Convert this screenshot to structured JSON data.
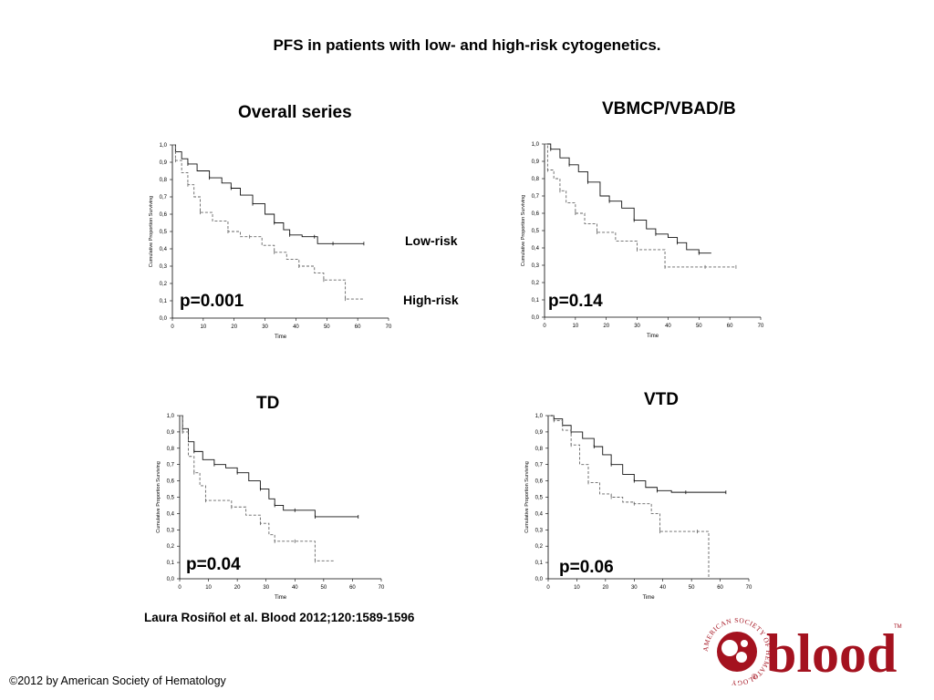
{
  "slide": {
    "title": "PFS in patients with low- and high-risk cytogenetics.",
    "citation": "Laura Rosiñol et al. Blood 2012;120:1589-1596",
    "copyright": "©2012 by American Society of Hematology"
  },
  "logo": {
    "wordmark": "blood",
    "society": "AMERICAN SOCIETY OF HEMATOLOGY",
    "tm": "TM",
    "registered": "®",
    "brand_color": "#a4121f"
  },
  "legend": {
    "low": "Low-risk",
    "high": "High-risk"
  },
  "axis_text": {
    "xlabel": "Time",
    "ylabel": "Cumulative Proportion Surviving",
    "x_ticks": [
      "0",
      "10",
      "20",
      "30",
      "40",
      "50",
      "60",
      "70"
    ],
    "y_ticks": [
      "0,0",
      "0,1",
      "0,2",
      "0,3",
      "0,4",
      "0,5",
      "0,6",
      "0,7",
      "0,8",
      "0,9",
      "1,0"
    ]
  },
  "chart_data": [
    {
      "type": "line",
      "title": "Overall series",
      "annotation": "p=0.001",
      "xlabel": "Time",
      "ylabel": "Cumulative Proportion Surviving",
      "xlim": [
        0,
        70
      ],
      "ylim": [
        0,
        1
      ],
      "series": [
        {
          "name": "Low-risk",
          "style": "solid",
          "x": [
            0,
            1,
            3,
            5,
            8,
            12,
            16,
            19,
            22,
            26,
            30,
            33,
            36,
            38,
            42,
            46,
            47,
            52,
            57,
            62
          ],
          "y": [
            1.0,
            0.96,
            0.92,
            0.89,
            0.85,
            0.81,
            0.78,
            0.75,
            0.71,
            0.66,
            0.6,
            0.55,
            0.51,
            0.48,
            0.47,
            0.47,
            0.43,
            0.43,
            0.43,
            0.43
          ]
        },
        {
          "name": "High-risk",
          "style": "dashed",
          "x": [
            0,
            1,
            3,
            5,
            7,
            9,
            13,
            18,
            22,
            25,
            29,
            33,
            37,
            41,
            46,
            49,
            53,
            56,
            62
          ],
          "y": [
            1.0,
            0.91,
            0.84,
            0.77,
            0.7,
            0.61,
            0.56,
            0.5,
            0.47,
            0.47,
            0.42,
            0.38,
            0.34,
            0.3,
            0.26,
            0.22,
            0.22,
            0.11,
            0.11
          ]
        }
      ]
    },
    {
      "type": "line",
      "title": "VBMCP/VBAD/B",
      "annotation": "p=0.14",
      "xlabel": "Time",
      "ylabel": "Cumulative Proportion Surviving",
      "xlim": [
        0,
        70
      ],
      "ylim": [
        0,
        1
      ],
      "series": [
        {
          "name": "Low-risk",
          "style": "solid",
          "x": [
            0,
            2,
            5,
            8,
            11,
            14,
            18,
            21,
            25,
            29,
            33,
            36,
            40,
            43,
            46,
            50,
            54
          ],
          "y": [
            1.0,
            0.97,
            0.92,
            0.88,
            0.84,
            0.78,
            0.7,
            0.67,
            0.63,
            0.56,
            0.51,
            0.48,
            0.46,
            0.43,
            0.39,
            0.37,
            0.37
          ]
        },
        {
          "name": "High-risk",
          "style": "dashed",
          "x": [
            0,
            1,
            3,
            5,
            7,
            10,
            13,
            17,
            23,
            30,
            37,
            39,
            45,
            52,
            56,
            62
          ],
          "y": [
            1.0,
            0.85,
            0.8,
            0.73,
            0.66,
            0.6,
            0.54,
            0.49,
            0.44,
            0.39,
            0.39,
            0.29,
            0.29,
            0.29,
            0.29,
            0.29
          ]
        }
      ]
    },
    {
      "type": "line",
      "title": "TD",
      "annotation": "p=0.04",
      "xlabel": "Time",
      "ylabel": "Cumulative Proportion Surviving",
      "xlim": [
        0,
        70
      ],
      "ylim": [
        0,
        1
      ],
      "series": [
        {
          "name": "Low-risk",
          "style": "solid",
          "x": [
            0,
            1,
            3,
            5,
            8,
            12,
            16,
            20,
            24,
            28,
            31,
            33,
            36,
            40,
            44,
            47,
            55,
            62
          ],
          "y": [
            1.0,
            0.92,
            0.84,
            0.78,
            0.73,
            0.7,
            0.68,
            0.65,
            0.6,
            0.55,
            0.49,
            0.45,
            0.42,
            0.42,
            0.42,
            0.38,
            0.38,
            0.38
          ]
        },
        {
          "name": "High-risk",
          "style": "dashed",
          "x": [
            0,
            1,
            3,
            5,
            7,
            9,
            14,
            18,
            23,
            28,
            31,
            33,
            36,
            40,
            44,
            47,
            54
          ],
          "y": [
            1.0,
            0.9,
            0.75,
            0.65,
            0.57,
            0.48,
            0.48,
            0.44,
            0.39,
            0.34,
            0.27,
            0.23,
            0.23,
            0.23,
            0.23,
            0.11,
            0.11
          ]
        }
      ]
    },
    {
      "type": "line",
      "title": "VTD",
      "annotation": "p=0.06",
      "xlabel": "Time",
      "ylabel": "Cumulative Proportion Surviving",
      "xlim": [
        0,
        70
      ],
      "ylim": [
        0,
        1
      ],
      "series": [
        {
          "name": "Low-risk",
          "style": "solid",
          "x": [
            0,
            2,
            5,
            8,
            12,
            16,
            19,
            22,
            26,
            30,
            34,
            38,
            43,
            48,
            54,
            62
          ],
          "y": [
            1.0,
            0.98,
            0.94,
            0.9,
            0.86,
            0.81,
            0.76,
            0.7,
            0.64,
            0.6,
            0.56,
            0.54,
            0.53,
            0.53,
            0.53,
            0.53
          ]
        },
        {
          "name": "High-risk",
          "style": "dashed",
          "x": [
            0,
            2,
            5,
            8,
            11,
            14,
            18,
            22,
            26,
            30,
            36,
            39,
            45,
            52,
            56
          ],
          "y": [
            1.0,
            0.97,
            0.91,
            0.82,
            0.7,
            0.59,
            0.52,
            0.5,
            0.47,
            0.46,
            0.4,
            0.29,
            0.29,
            0.29,
            0.0
          ]
        }
      ]
    }
  ]
}
